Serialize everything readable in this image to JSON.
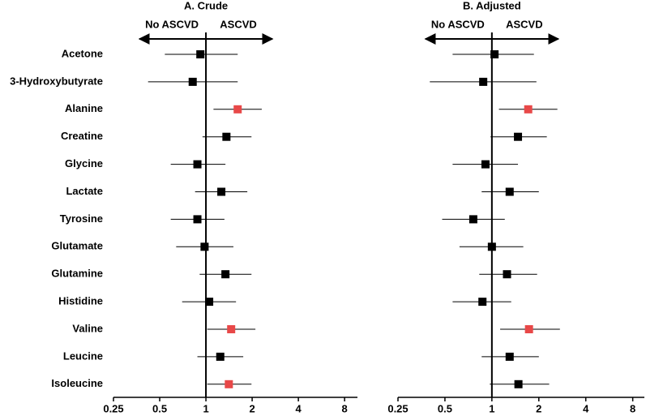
{
  "chart_data": [
    {
      "type": "forest",
      "title": "A. Crude",
      "left_annotation": "No ASCVD",
      "right_annotation": "ASCVD",
      "categories": [
        "Acetone",
        "3-Hydroxybutyrate",
        "Alanine",
        "Creatine",
        "Glycine",
        "Lactate",
        "Tyrosine",
        "Glutamate",
        "Glutamine",
        "Histidine",
        "Valine",
        "Leucine",
        "Isoleucine"
      ],
      "values": [
        0.92,
        0.82,
        1.61,
        1.36,
        0.88,
        1.26,
        0.88,
        0.98,
        1.34,
        1.05,
        1.46,
        1.24,
        1.41
      ],
      "ci_low": [
        0.54,
        0.42,
        1.12,
        0.95,
        0.59,
        0.85,
        0.59,
        0.64,
        0.91,
        0.7,
        1.02,
        0.88,
        1.02
      ],
      "ci_high": [
        1.61,
        1.61,
        2.31,
        1.98,
        1.34,
        1.86,
        1.32,
        1.51,
        1.98,
        1.57,
        2.1,
        1.75,
        1.98
      ],
      "colors": [
        "#000000",
        "#000000",
        "#e84848",
        "#000000",
        "#000000",
        "#000000",
        "#000000",
        "#000000",
        "#000000",
        "#000000",
        "#e84848",
        "#000000",
        "#e84848"
      ],
      "xlim": [
        0.25,
        9.7
      ],
      "xticks": [
        0.25,
        0.5,
        1,
        2,
        4,
        8
      ],
      "log_x": true,
      "ref_value": 1
    },
    {
      "type": "forest",
      "title": "B. Adjusted",
      "left_annotation": "No ASCVD",
      "right_annotation": "ASCVD",
      "values": [
        1.04,
        0.88,
        1.71,
        1.47,
        0.91,
        1.3,
        0.76,
        1.0,
        1.25,
        0.87,
        1.73,
        1.3,
        1.48
      ],
      "ci_low": [
        0.56,
        0.4,
        1.11,
        0.98,
        0.56,
        0.86,
        0.48,
        0.62,
        0.83,
        0.56,
        1.13,
        0.86,
        0.97
      ],
      "ci_high": [
        1.86,
        1.93,
        2.63,
        2.25,
        1.47,
        2.0,
        1.21,
        1.59,
        1.95,
        1.33,
        2.73,
        2.0,
        2.33
      ],
      "colors": [
        "#000000",
        "#000000",
        "#e84848",
        "#000000",
        "#000000",
        "#000000",
        "#000000",
        "#000000",
        "#000000",
        "#000000",
        "#e84848",
        "#000000",
        "#000000"
      ],
      "xlim": [
        0.25,
        9.5
      ],
      "xticks": [
        0.25,
        0.5,
        1,
        2,
        4,
        8
      ],
      "log_x": true,
      "ref_value": 1
    }
  ]
}
